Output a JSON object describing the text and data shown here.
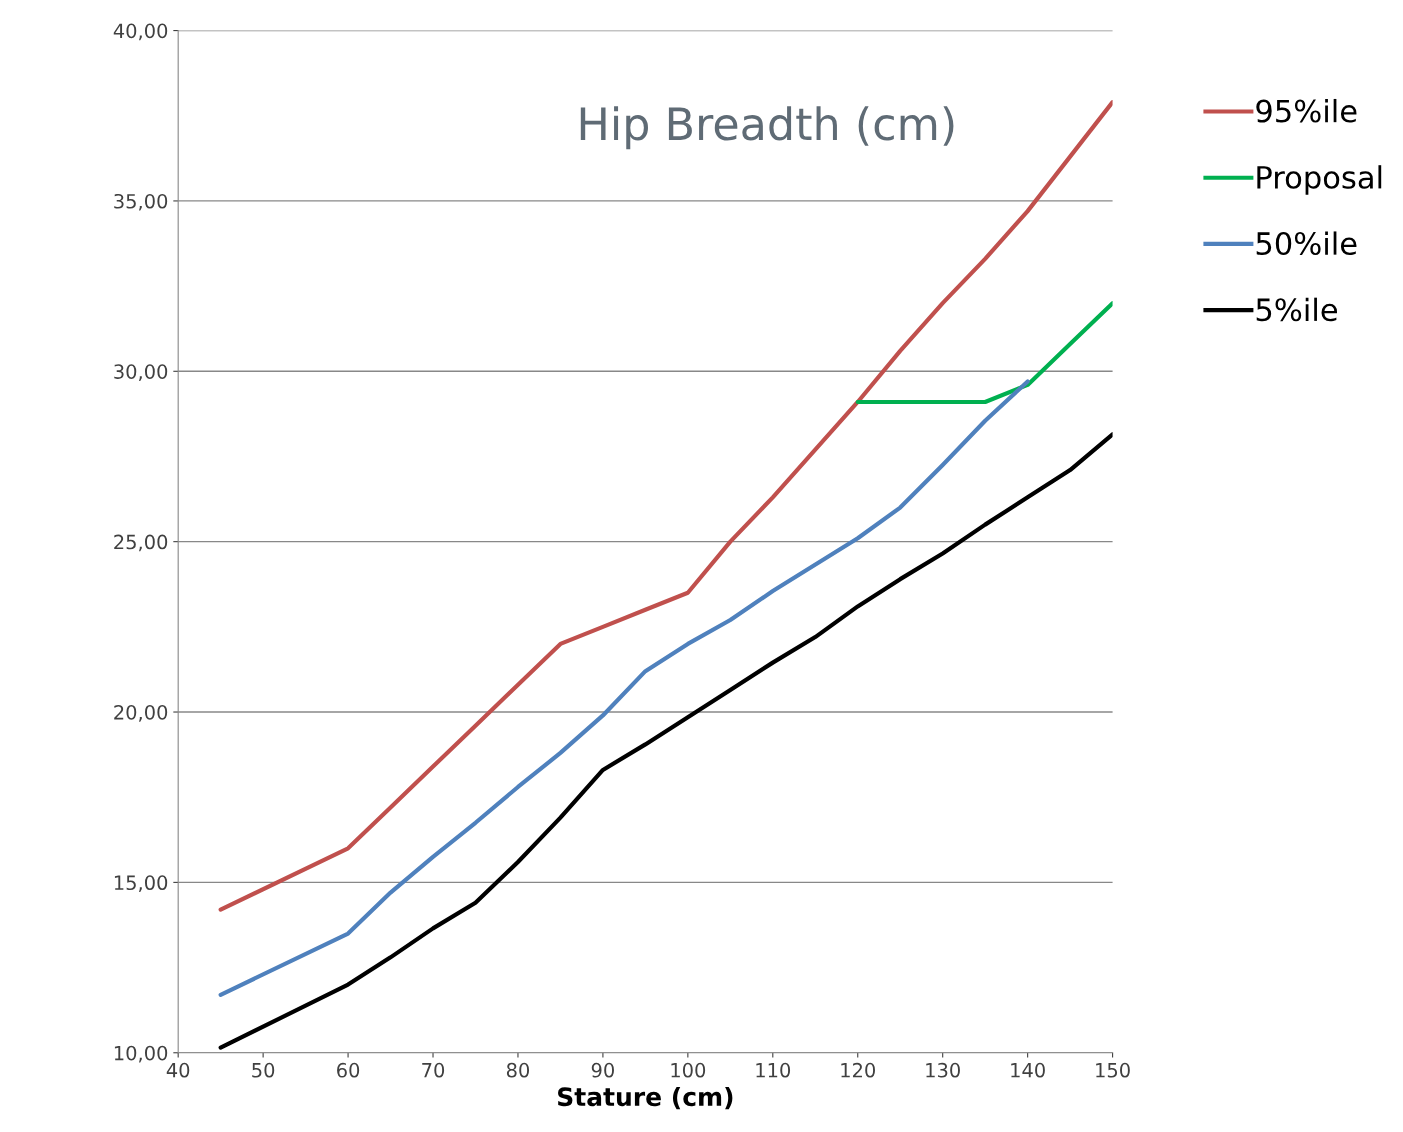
{
  "chart_data": {
    "type": "line",
    "title": "Hip Breadth (cm)",
    "xlabel": "Stature (cm)",
    "series": [
      {
        "name": "95%ile",
        "color": "#c0504d",
        "x": [
          45,
          60,
          65,
          70,
          75,
          85,
          90,
          95,
          100,
          105,
          110,
          120,
          125,
          130,
          135,
          140,
          145,
          150
        ],
        "values": [
          14.2,
          16.0,
          17.2,
          18.4,
          19.6,
          22.0,
          22.5,
          23.0,
          23.5,
          25.0,
          26.3,
          29.1,
          30.6,
          32.0,
          33.3,
          34.7,
          36.3,
          37.9
        ]
      },
      {
        "name": "Proposal",
        "color": "#00b050",
        "x": [
          120,
          135,
          140,
          145,
          150
        ],
        "values": [
          29.1,
          29.1,
          29.6,
          30.8,
          32.0
        ]
      },
      {
        "name": "50%ile",
        "color": "#4f81bd",
        "x": [
          45,
          60,
          65,
          70,
          75,
          80,
          85,
          90,
          95,
          100,
          105,
          110,
          120,
          125,
          130,
          135,
          140
        ],
        "values": [
          11.7,
          13.5,
          14.7,
          15.75,
          16.75,
          17.8,
          18.8,
          19.9,
          21.2,
          22.0,
          22.7,
          23.55,
          25.1,
          26.0,
          27.25,
          28.55,
          29.7
        ]
      },
      {
        "name": "5%ile",
        "color": "#000000",
        "x": [
          45,
          60,
          65,
          70,
          75,
          80,
          85,
          90,
          95,
          100,
          105,
          110,
          115,
          120,
          125,
          130,
          135,
          140,
          145,
          150
        ],
        "values": [
          10.15,
          12.0,
          12.8,
          13.65,
          14.4,
          15.6,
          16.9,
          18.3,
          19.05,
          19.85,
          20.65,
          21.45,
          22.2,
          23.1,
          23.9,
          24.65,
          25.5,
          26.3,
          27.1,
          28.15
        ]
      }
    ],
    "xlim": [
      40,
      150
    ],
    "xticks": [
      40,
      50,
      60,
      70,
      80,
      90,
      100,
      110,
      120,
      130,
      140,
      150
    ],
    "ylim": [
      10,
      40
    ],
    "yticks": [
      {
        "value": 10,
        "label": "10,00"
      },
      {
        "value": 15,
        "label": "15,00"
      },
      {
        "value": 20,
        "label": "20,00"
      },
      {
        "value": 25,
        "label": "25,00"
      },
      {
        "value": 30,
        "label": "30,00"
      },
      {
        "value": 35,
        "label": "35,00"
      },
      {
        "value": 40,
        "label": "40,00"
      }
    ],
    "grid": "y",
    "legend": "right",
    "marker": "none",
    "line_style": "solid"
  }
}
